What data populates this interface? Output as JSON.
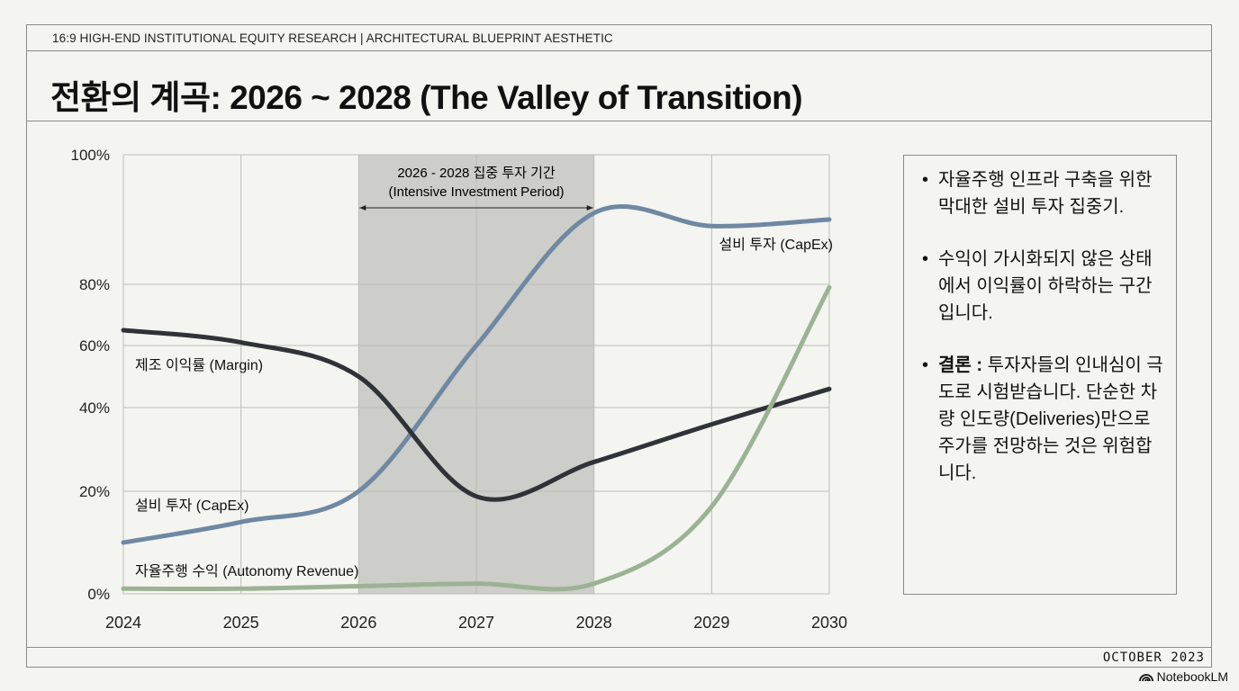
{
  "header": {
    "kicker": "16:9 HIGH-END INSTITUTIONAL EQUITY RESEARCH | ARCHITECTURAL BLUEPRINT AESTHETIC",
    "title": "전환의 계곡: 2026 ~ 2028 (The Valley of Transition)"
  },
  "panel": {
    "bullets": [
      {
        "bold": "",
        "text": "자율주행 인프라 구축을 위한 막대한 설비 투자 집중기."
      },
      {
        "bold": "",
        "text": "수익이 가시화되지 않은 상태에서 이익률이 하락하는 구간입니다."
      },
      {
        "bold": "결론 :",
        "text": " 투자자들의 인내심이 극도로 시험받습니다. 단순한 차량 인도량(Deliveries)만으로 주가를 전망하는 것은 위험합니다."
      }
    ]
  },
  "footer": {
    "date": "OCTOBER 2023",
    "brand": "NotebookLM"
  },
  "colors": {
    "margin": "#2f3237",
    "capex": "#6f88a3",
    "autonomy": "#9bb394",
    "shade": "#cdcdc9"
  },
  "chart_data": {
    "type": "line",
    "x": [
      2024,
      2025,
      2026,
      2027,
      2028,
      2029,
      2030
    ],
    "x_tick_labels": [
      "2024",
      "2025",
      "2026",
      "2027",
      "2028",
      "2029",
      "2030"
    ],
    "y_ticks": [
      0,
      20,
      40,
      60,
      80,
      100
    ],
    "y_tick_labels": [
      "0%",
      "20%",
      "40%",
      "60%",
      "80%",
      "100%"
    ],
    "ylim": [
      0,
      100
    ],
    "grid": true,
    "series": [
      {
        "name": "제조 이익률 (Margin)",
        "key": "margin",
        "values": [
          65,
          61,
          50,
          19,
          27,
          36,
          46
        ]
      },
      {
        "name": "설비 투자 (CapEx)",
        "key": "capex",
        "values": [
          10,
          14,
          20,
          60,
          91,
          89,
          90
        ],
        "end_label": "설비 투자 (CapEx)"
      },
      {
        "name": "자율주행 수익 (Autonomy Revenue)",
        "key": "autonomy",
        "values": [
          1,
          1,
          1.5,
          2,
          2,
          17,
          79
        ]
      }
    ],
    "annotation": {
      "range": [
        2026,
        2028
      ],
      "line1": "2026 - 2028 집중 투자 기간",
      "line2": "(Intensive Investment Period)"
    }
  }
}
